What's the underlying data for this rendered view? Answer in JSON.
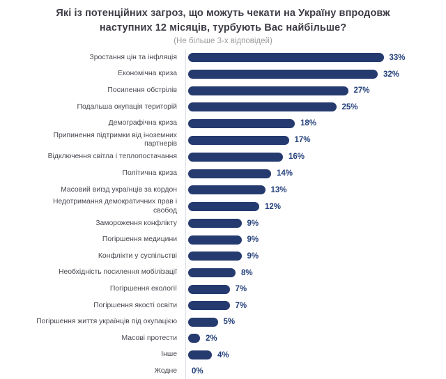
{
  "header": {
    "title": "Які із потенційних загроз, що можуть чекати на Україну впродовж наступних 12 місяців, турбують Вас найбільше?",
    "subtitle": "(Не більше 3-х відповідей)"
  },
  "colors": {
    "bar": "#253a6e",
    "value_label": "#24407b",
    "category_label": "#47474f",
    "axis_line": "#dcdfe8",
    "title": "#3c3c46",
    "subtitle": "#9b9b9f",
    "background": "#ffffff"
  },
  "chart_data": {
    "type": "bar",
    "orientation": "horizontal",
    "title": "Які із потенційних загроз, що можуть чекати на Україну впродовж наступних 12 місяців, турбують Вас найбільше?",
    "subtitle": "(Не більше 3-х відповідей)",
    "categories": [
      "Зростання цін та інфляція",
      "Економічна криза",
      "Посилення обстрілів",
      "Подальша окупація територій",
      "Демографічна криза",
      "Припинення підтримки від іноземних\nпартнерів",
      "Відключення світла і теплопостачання",
      "Політична криза",
      "Масовий виїзд українців за кордон",
      "Недотримання демократичних прав і\nсвобод",
      "Замороження конфлікту",
      "Погіршення медицини",
      "Конфлікти у суспільстві",
      "Необхідність посилення мобілізації",
      "Погіршення екології",
      "Погіршення якості освіти",
      "Погіршення життя українців під окупацією",
      "Масові протести",
      "Інше",
      "Жодне"
    ],
    "values": [
      33,
      32,
      27,
      25,
      18,
      17,
      16,
      14,
      13,
      12,
      9,
      9,
      9,
      8,
      7,
      7,
      5,
      2,
      4,
      0
    ],
    "value_suffix": "%",
    "value_labels_position": "end-of-bar",
    "xlim": [
      0,
      35
    ],
    "grid": false,
    "legend": "none",
    "bar_color": "#253a6e"
  }
}
